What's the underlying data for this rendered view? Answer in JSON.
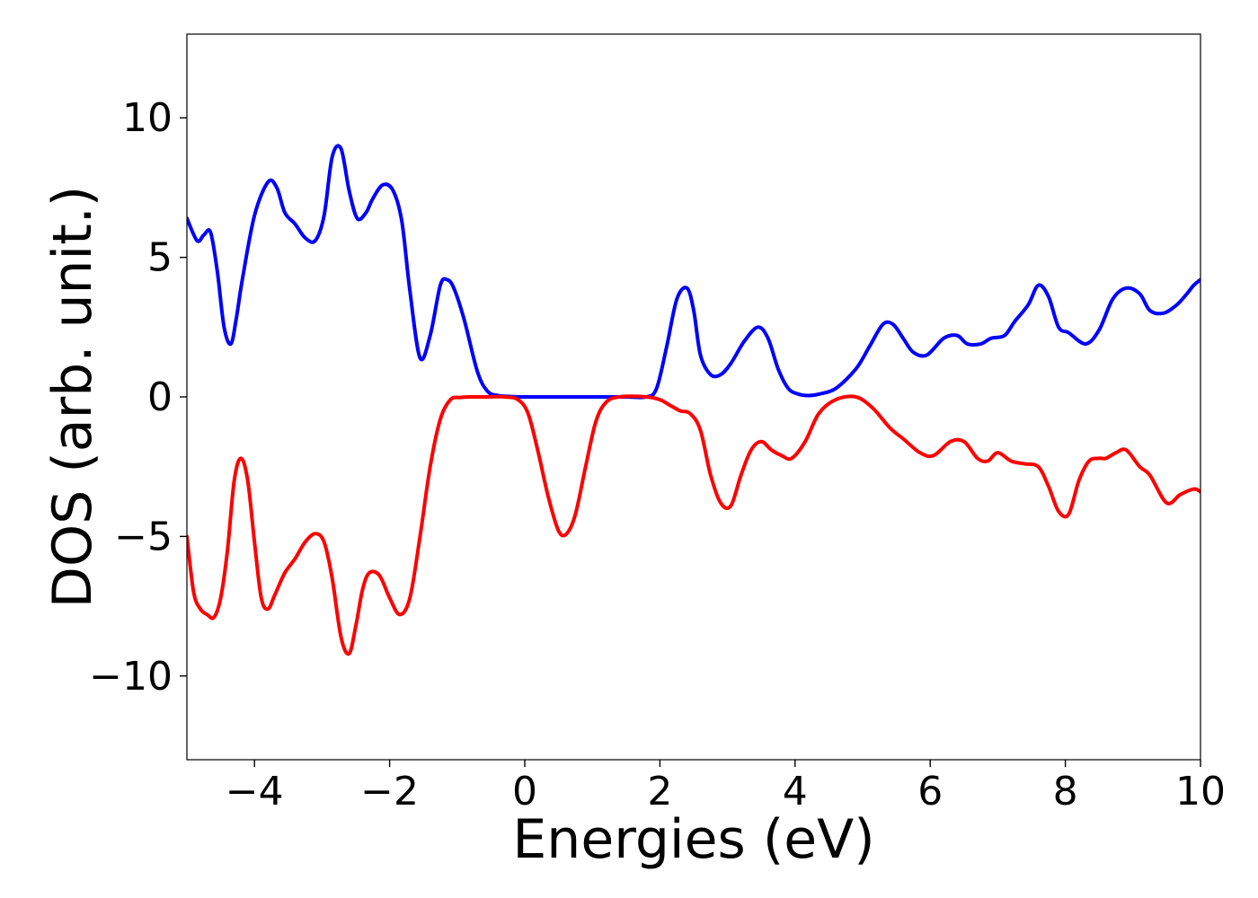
{
  "chart_data": {
    "type": "line",
    "title": "",
    "xlabel": "Energies (eV)",
    "ylabel": "DOS (arb. unit.)",
    "xlim": [
      -5,
      10
    ],
    "ylim": [
      -13,
      13
    ],
    "xticks": [
      -4,
      -2,
      0,
      2,
      4,
      6,
      8,
      10
    ],
    "xtick_labels": [
      "−4",
      "−2",
      "0",
      "2",
      "4",
      "6",
      "8",
      "10"
    ],
    "yticks": [
      -10,
      -5,
      0,
      5,
      10
    ],
    "ytick_labels": [
      "−10",
      "−5",
      "0",
      "5",
      "10"
    ],
    "grid": false,
    "legend": "none",
    "series": [
      {
        "color": "#0000ff",
        "x": [
          -5.0,
          -4.85,
          -4.75,
          -4.65,
          -4.55,
          -4.45,
          -4.35,
          -4.27,
          -4.18,
          -4.0,
          -3.8,
          -3.67,
          -3.55,
          -3.4,
          -3.25,
          -3.1,
          -2.97,
          -2.85,
          -2.72,
          -2.6,
          -2.48,
          -2.35,
          -2.25,
          -2.1,
          -1.95,
          -1.82,
          -1.7,
          -1.55,
          -1.4,
          -1.25,
          -1.15,
          -1.05,
          -0.9,
          -0.7,
          -0.55,
          -0.4,
          -0.25,
          -0.1,
          0.0,
          0.2,
          0.5,
          1.0,
          1.5,
          1.8,
          1.95,
          2.1,
          2.25,
          2.4,
          2.5,
          2.6,
          2.75,
          2.9,
          3.05,
          3.25,
          3.45,
          3.6,
          3.75,
          3.9,
          4.05,
          4.2,
          4.35,
          4.6,
          4.9,
          5.1,
          5.3,
          5.45,
          5.6,
          5.75,
          5.95,
          6.2,
          6.4,
          6.55,
          6.75,
          6.9,
          7.1,
          7.25,
          7.45,
          7.6,
          7.75,
          7.9,
          8.05,
          8.3,
          8.5,
          8.7,
          8.9,
          9.1,
          9.25,
          9.45,
          9.65,
          9.8,
          9.9,
          10.0
        ],
        "y": [
          6.4,
          5.6,
          5.8,
          5.9,
          4.5,
          2.5,
          1.9,
          2.8,
          4.2,
          6.5,
          7.7,
          7.5,
          6.6,
          6.2,
          5.7,
          5.6,
          6.5,
          8.6,
          8.9,
          7.4,
          6.4,
          6.6,
          7.1,
          7.6,
          7.4,
          6.3,
          3.8,
          1.4,
          2.2,
          4.0,
          4.2,
          3.9,
          2.8,
          0.9,
          0.2,
          0.05,
          0.02,
          0.0,
          0.0,
          0.0,
          0.0,
          0.0,
          0.0,
          0.0,
          0.3,
          1.8,
          3.5,
          3.9,
          3.1,
          1.5,
          0.8,
          0.8,
          1.2,
          2.0,
          2.5,
          2.1,
          1.0,
          0.3,
          0.1,
          0.05,
          0.1,
          0.3,
          1.0,
          1.8,
          2.6,
          2.6,
          2.1,
          1.6,
          1.5,
          2.1,
          2.2,
          1.9,
          1.9,
          2.1,
          2.2,
          2.7,
          3.3,
          4.0,
          3.6,
          2.5,
          2.3,
          1.9,
          2.4,
          3.5,
          3.9,
          3.7,
          3.1,
          3.0,
          3.3,
          3.7,
          4.0,
          4.2
        ]
      },
      {
        "color": "#ff0000",
        "x": [
          -5.0,
          -4.9,
          -4.8,
          -4.7,
          -4.6,
          -4.5,
          -4.4,
          -4.3,
          -4.2,
          -4.1,
          -4.0,
          -3.9,
          -3.8,
          -3.7,
          -3.55,
          -3.4,
          -3.25,
          -3.1,
          -2.97,
          -2.85,
          -2.72,
          -2.6,
          -2.5,
          -2.4,
          -2.3,
          -2.15,
          -2.0,
          -1.85,
          -1.7,
          -1.55,
          -1.4,
          -1.25,
          -1.1,
          -0.95,
          -0.8,
          -0.6,
          -0.3,
          -0.1,
          0.05,
          0.2,
          0.35,
          0.5,
          0.62,
          0.75,
          0.9,
          1.05,
          1.2,
          1.4,
          1.8,
          2.0,
          2.15,
          2.3,
          2.45,
          2.6,
          2.75,
          2.9,
          3.05,
          3.2,
          3.35,
          3.5,
          3.65,
          3.8,
          3.95,
          4.15,
          4.35,
          4.6,
          4.9,
          5.15,
          5.4,
          5.6,
          5.85,
          6.05,
          6.3,
          6.5,
          6.7,
          6.85,
          7.0,
          7.2,
          7.4,
          7.6,
          7.75,
          7.9,
          8.05,
          8.2,
          8.35,
          8.5,
          8.6,
          8.75,
          8.9,
          9.1,
          9.25,
          9.5,
          9.7,
          9.9,
          10.0
        ],
        "y": [
          -5.0,
          -7.0,
          -7.6,
          -7.8,
          -7.9,
          -7.2,
          -5.5,
          -3.0,
          -2.2,
          -3.0,
          -5.2,
          -7.2,
          -7.6,
          -7.1,
          -6.3,
          -5.8,
          -5.2,
          -4.9,
          -5.2,
          -6.5,
          -8.6,
          -9.2,
          -8.2,
          -6.9,
          -6.3,
          -6.4,
          -7.2,
          -7.8,
          -7.2,
          -5.0,
          -2.5,
          -0.8,
          -0.1,
          -0.02,
          0.0,
          0.0,
          0.0,
          -0.1,
          -0.6,
          -2.0,
          -3.6,
          -4.8,
          -4.9,
          -4.2,
          -2.5,
          -0.9,
          -0.2,
          0.0,
          0.0,
          -0.1,
          -0.3,
          -0.5,
          -0.6,
          -1.2,
          -2.8,
          -3.8,
          -3.9,
          -2.8,
          -1.9,
          -1.6,
          -1.9,
          -2.1,
          -2.2,
          -1.6,
          -0.6,
          -0.1,
          0.0,
          -0.4,
          -1.1,
          -1.5,
          -2.0,
          -2.1,
          -1.6,
          -1.6,
          -2.2,
          -2.3,
          -2.0,
          -2.3,
          -2.4,
          -2.5,
          -3.2,
          -4.1,
          -4.2,
          -3.0,
          -2.3,
          -2.2,
          -2.2,
          -2.0,
          -1.9,
          -2.5,
          -2.8,
          -3.8,
          -3.5,
          -3.3,
          -3.4
        ]
      }
    ]
  }
}
